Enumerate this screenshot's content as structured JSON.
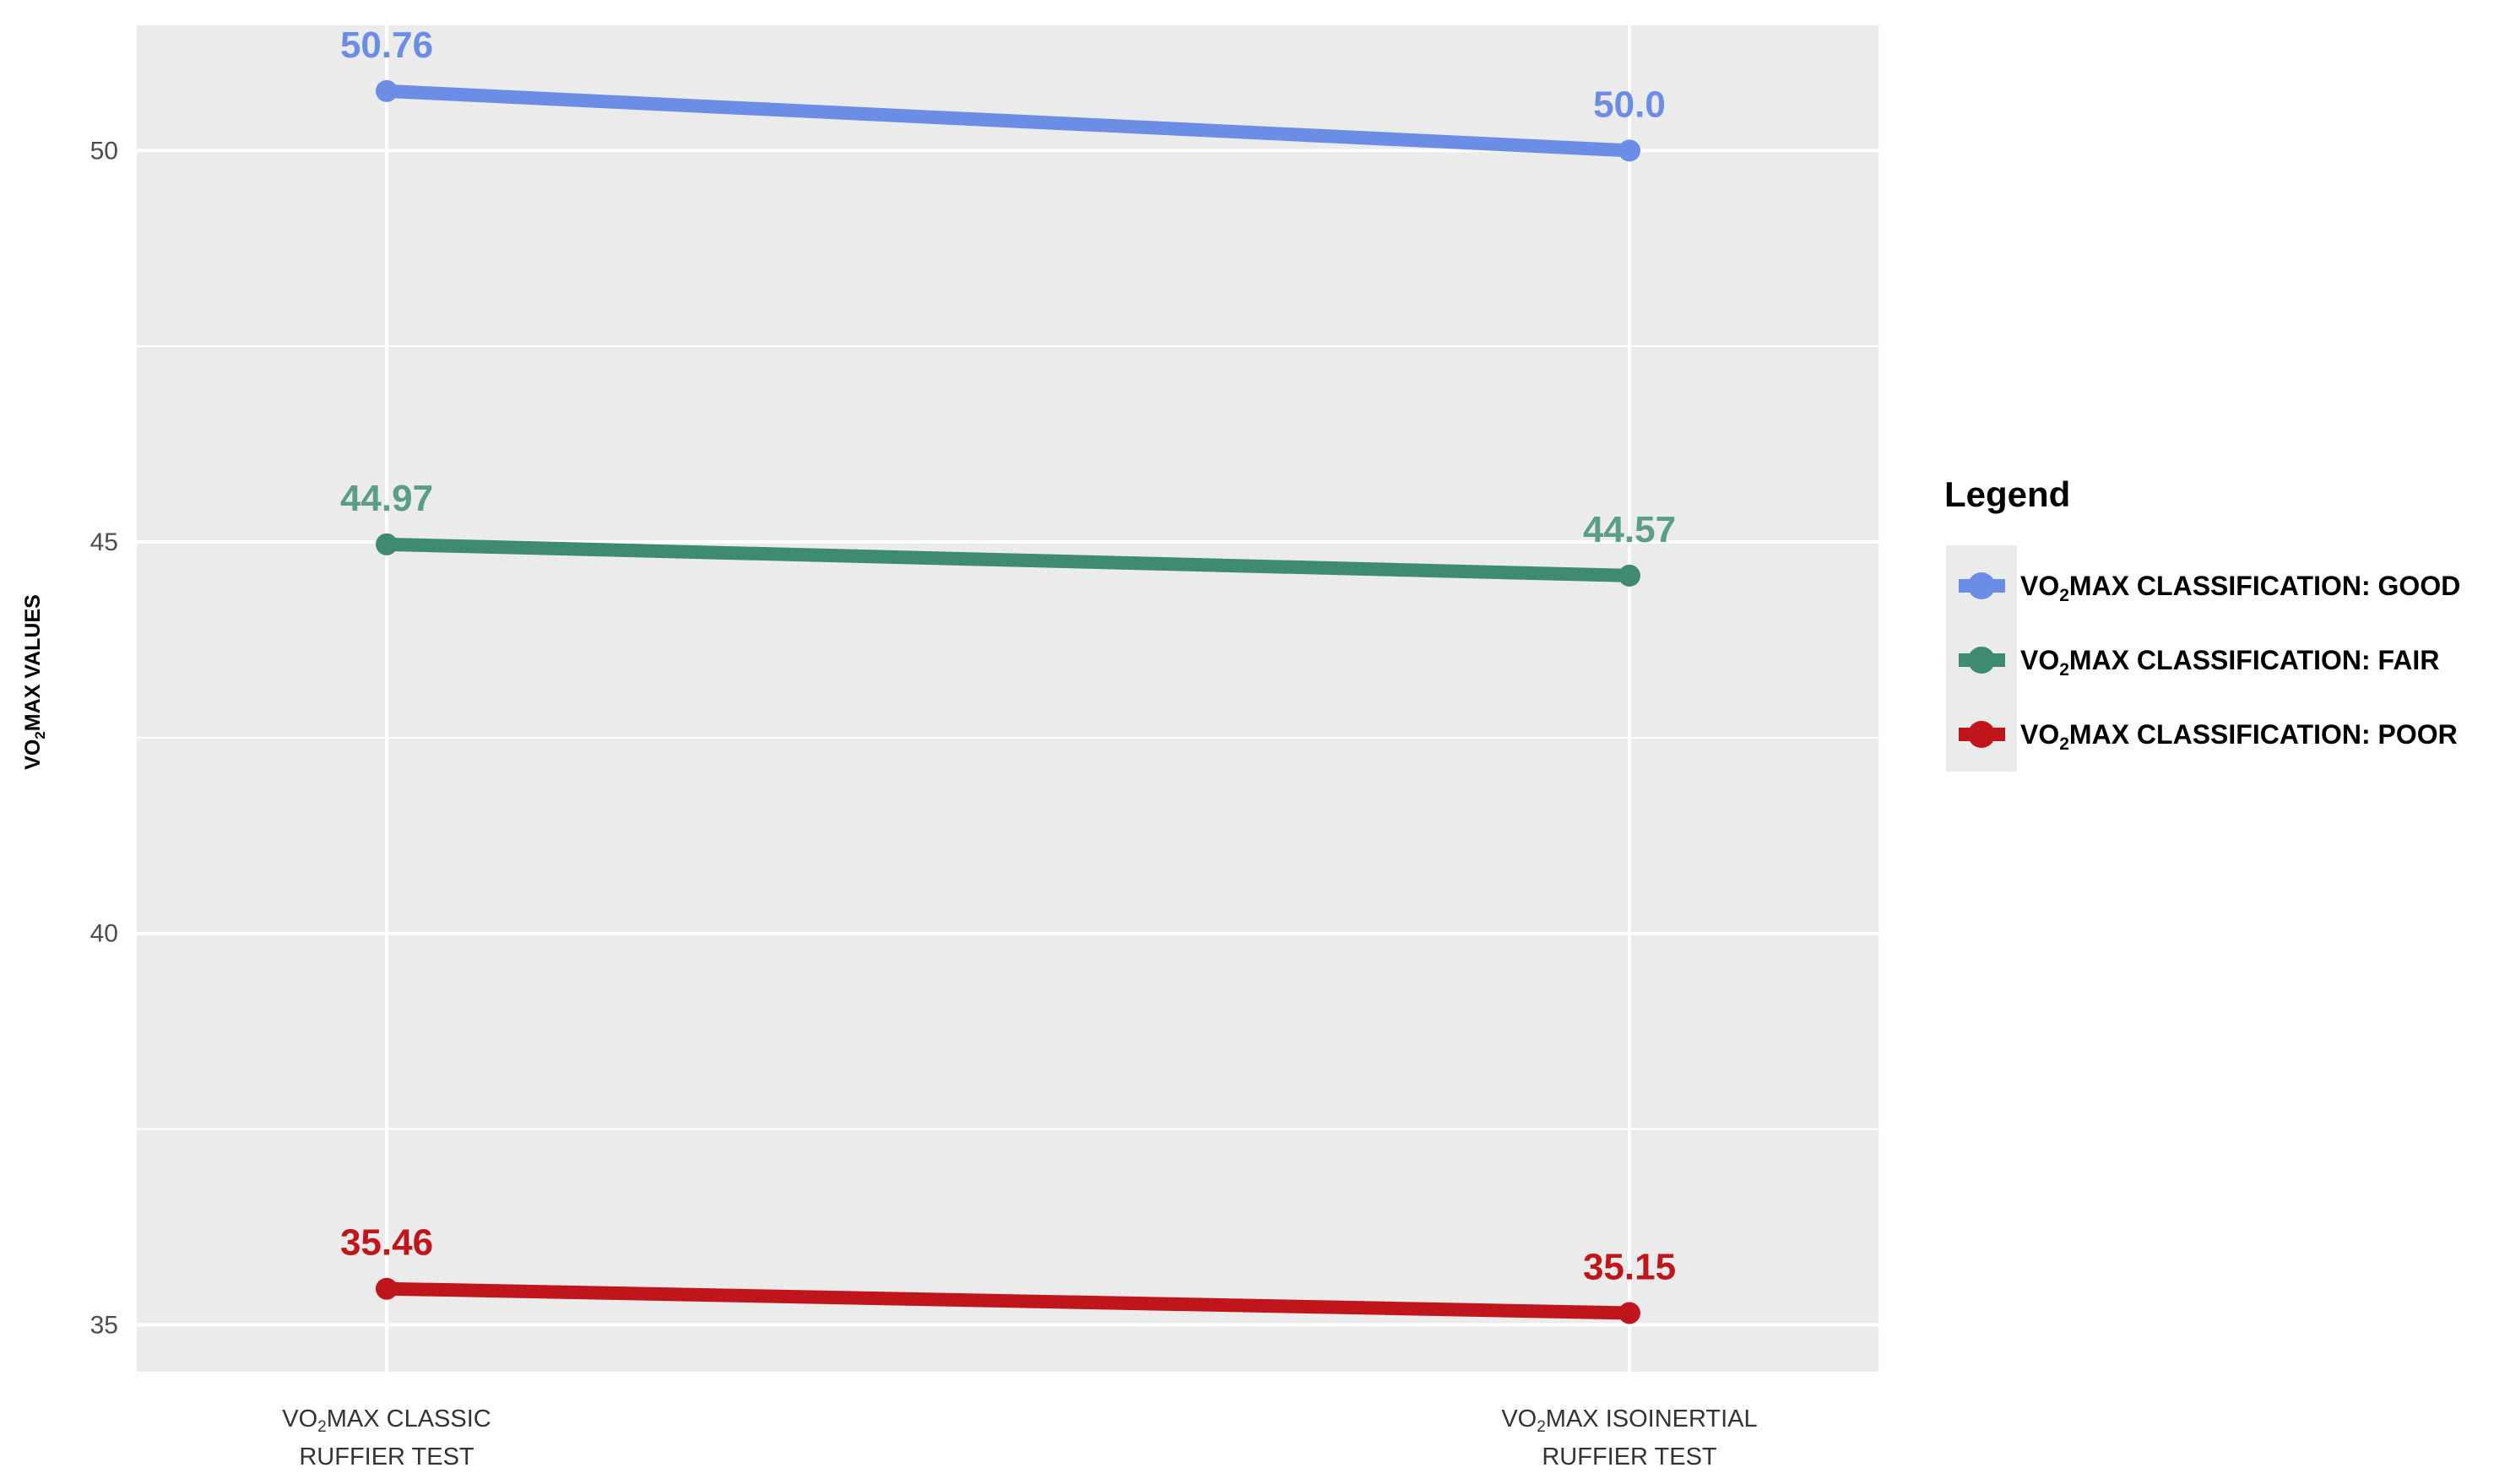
{
  "chart_data": {
    "type": "line",
    "categories": [
      {
        "prefix": "VO",
        "sub": "2",
        "rest": "MAX CLASSIC",
        "line2": "RUFFIER  TEST"
      },
      {
        "prefix": "VO",
        "sub": "2",
        "rest": "MAX ISOINERTIAL",
        "line2": "RUFFIER  TEST"
      }
    ],
    "ylabel": {
      "prefix": "VO",
      "sub": "2",
      "rest": "MAX VALUES"
    },
    "ylim": [
      34.4,
      51.6
    ],
    "yticks": [
      35,
      40,
      45,
      50
    ],
    "grid": true,
    "legend": {
      "title": "Legend",
      "placement": "right"
    },
    "series": [
      {
        "name": "VO2MAX CLASSIFICATION: GOOD",
        "legend_prefix": "VO",
        "legend_sub": "2",
        "legend_rest": "MAX CLASSIFICATION: GOOD",
        "color": "#6b8de6",
        "label_color": "#6b8de6",
        "values": [
          50.76,
          50.0
        ],
        "labels": [
          "50.76",
          "50.0"
        ]
      },
      {
        "name": "VO2MAX CLASSIFICATION: FAIR",
        "legend_prefix": "VO",
        "legend_sub": "2",
        "legend_rest": "MAX CLASSIFICATION: FAIR",
        "color": "#3e8a73",
        "label_color": "#5a9e88",
        "values": [
          44.97,
          44.57
        ],
        "labels": [
          "44.97",
          "44.57"
        ]
      },
      {
        "name": "VO2MAX CLASSIFICATION: POOR",
        "legend_prefix": "VO",
        "legend_sub": "2",
        "legend_rest": "MAX CLASSIFICATION: POOR",
        "color": "#c0161b",
        "label_color": "#c0161b",
        "values": [
          35.46,
          35.15
        ],
        "labels": [
          "35.46",
          "35.15"
        ]
      }
    ],
    "colors": {
      "panel_background": "#ebebeb",
      "grid_line": "#ffffff"
    }
  }
}
